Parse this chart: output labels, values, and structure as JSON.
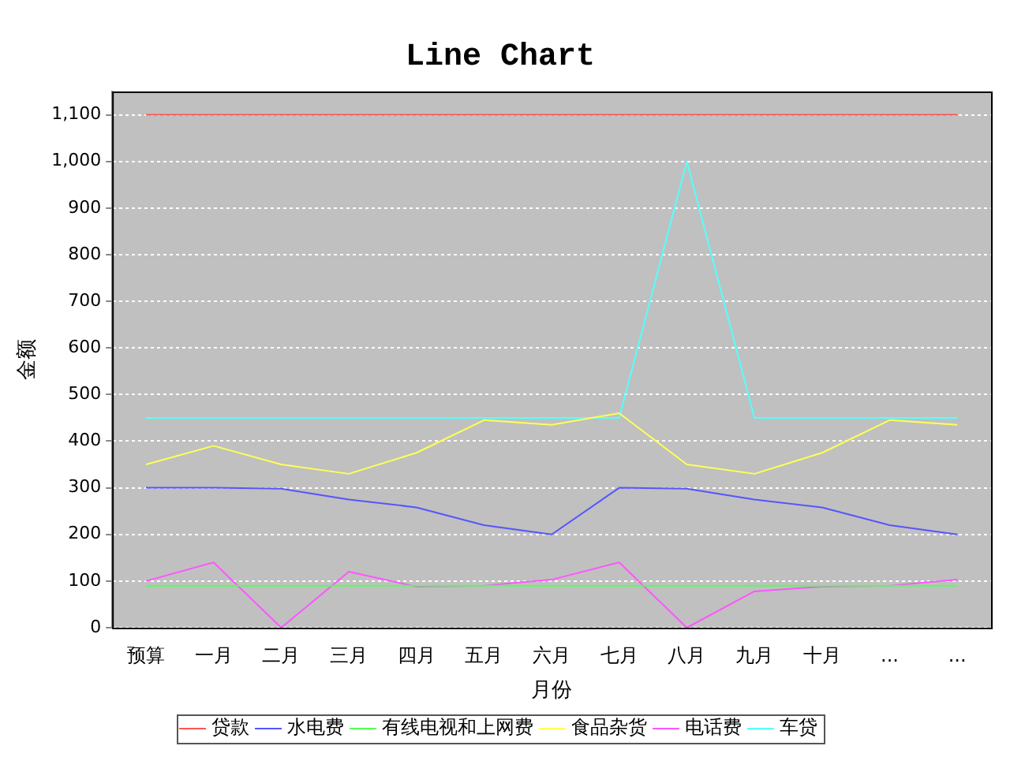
{
  "chart_data": {
    "type": "line",
    "title": "Line Chart",
    "xlabel": "月份",
    "ylabel": "金额",
    "categories": [
      "预算",
      "一月",
      "二月",
      "三月",
      "四月",
      "五月",
      "六月",
      "七月",
      "八月",
      "九月",
      "十月",
      "...",
      "..."
    ],
    "series": [
      {
        "name": "贷款",
        "color": "#ff5555",
        "values": [
          1100,
          1100,
          1100,
          1100,
          1100,
          1100,
          1100,
          1100,
          1100,
          1100,
          1100,
          1100,
          1100
        ]
      },
      {
        "name": "水电费",
        "color": "#5555ff",
        "values": [
          300,
          300,
          298,
          275,
          258,
          220,
          200,
          300,
          298,
          275,
          258,
          220,
          200
        ]
      },
      {
        "name": "有线电视和上网费",
        "color": "#55ff55",
        "values": [
          90,
          90,
          90,
          90,
          90,
          90,
          90,
          90,
          90,
          90,
          90,
          90,
          90
        ]
      },
      {
        "name": "食品杂货",
        "color": "#ffff55",
        "values": [
          350,
          390,
          350,
          330,
          375,
          445,
          435,
          460,
          350,
          330,
          375,
          445,
          435
        ]
      },
      {
        "name": "电话费",
        "color": "#ff55ff",
        "values": [
          100,
          140,
          0,
          120,
          88,
          90,
          103,
          140,
          0,
          78,
          88,
          90,
          103
        ]
      },
      {
        "name": "车贷",
        "color": "#55ffff",
        "values": [
          450,
          450,
          450,
          450,
          450,
          450,
          450,
          450,
          1000,
          450,
          450,
          450,
          450
        ]
      }
    ],
    "ylim": [
      0,
      1150
    ],
    "yticks": [
      0,
      100,
      200,
      300,
      400,
      500,
      600,
      700,
      800,
      900,
      {
        "value": 1000,
        "label": "1,000"
      },
      {
        "value": 1100,
        "label": "1,100"
      }
    ],
    "grid": "y",
    "legend": "bottom",
    "marker": "none",
    "line_style": "solid"
  }
}
